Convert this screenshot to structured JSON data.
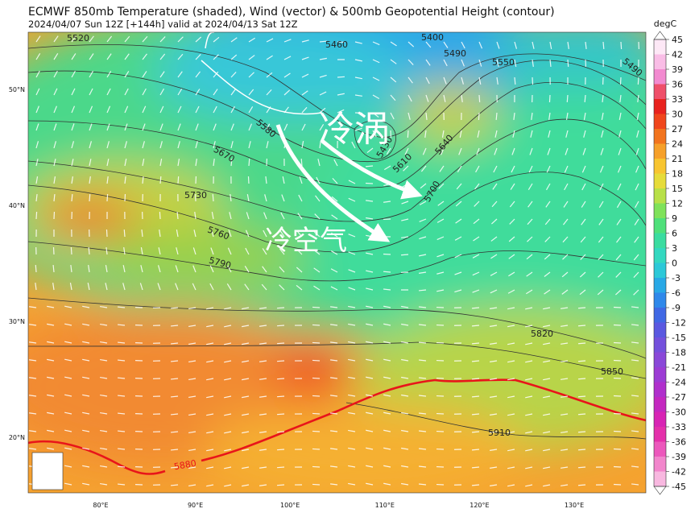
{
  "header": {
    "title": "ECMWF 850mb Temperature (shaded), Wind (vector) & 500mb Geopotential Height (contour)",
    "subtitle": "2024/04/07 Sun 12Z [+144h] valid at 2024/04/13 Sat 12Z"
  },
  "map": {
    "lat_labels": [
      {
        "value": 50,
        "label": "50°N"
      },
      {
        "value": 40,
        "label": "40°N"
      },
      {
        "value": 30,
        "label": "30°N"
      },
      {
        "value": 20,
        "label": "20°N"
      }
    ],
    "lon_labels": [
      {
        "value": 80,
        "label": "80°E"
      },
      {
        "value": 90,
        "label": "90°E"
      },
      {
        "value": 100,
        "label": "100°E"
      },
      {
        "value": 110,
        "label": "110°E"
      },
      {
        "value": 120,
        "label": "120°E"
      },
      {
        "value": 130,
        "label": "130°E"
      }
    ],
    "contour_labels": [
      5520,
      5460,
      5400,
      5490,
      5550,
      5490,
      5580,
      5670,
      5730,
      5760,
      5790,
      5430,
      5610,
      5640,
      5700,
      5820,
      5850,
      5910,
      5880
    ],
    "annotations": [
      "冷涡",
      "冷空气"
    ]
  },
  "colorbar": {
    "unit": "degC",
    "ticks": [
      45,
      42,
      39,
      36,
      33,
      30,
      27,
      24,
      21,
      18,
      15,
      12,
      9,
      6,
      3,
      0,
      -3,
      -6,
      -9,
      -12,
      -15,
      -18,
      -21,
      -24,
      -27,
      -30,
      -33,
      -36,
      -39,
      -42,
      -45
    ]
  }
}
